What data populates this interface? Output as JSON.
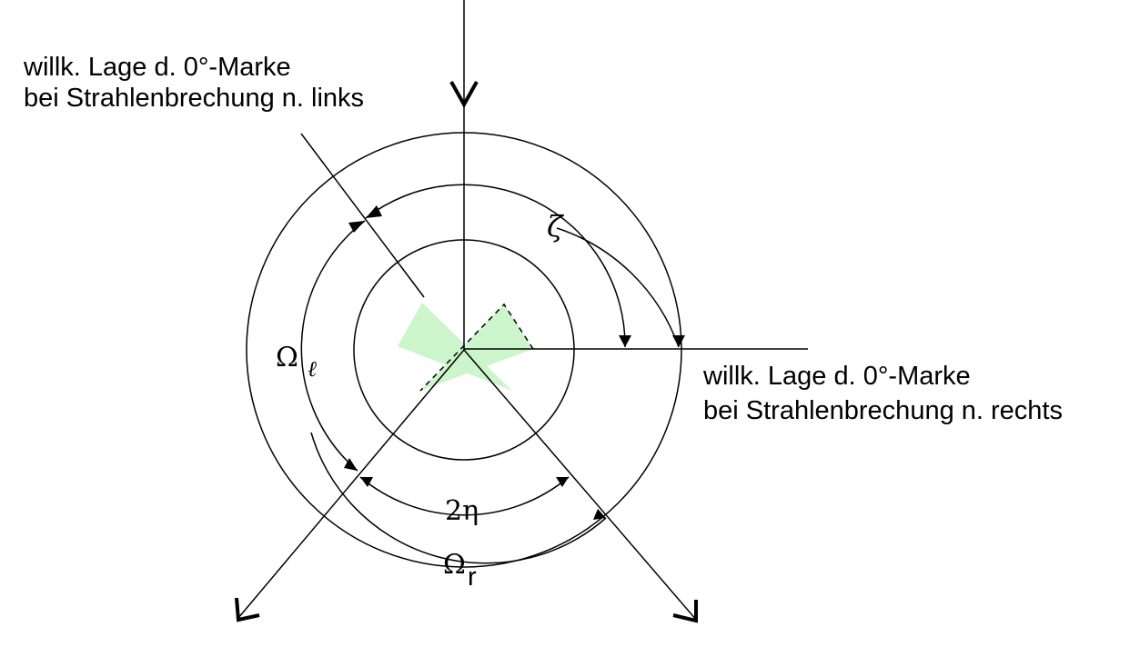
{
  "labels": {
    "left_note_line1": "willk. Lage d. 0°-Marke",
    "left_note_line2": "bei Strahlenbrechung n. links",
    "right_note_line1": "willk. Lage d. 0°-Marke",
    "right_note_line2": "bei Strahlenbrechung n. rechts"
  },
  "angles": {
    "zeta": "ζ",
    "omega_left": "Ω",
    "omega_left_sub": "ℓ",
    "two_eta_coef": "2",
    "two_eta": "η",
    "omega_right": "Ω",
    "omega_right_sub": "r"
  },
  "colors": {
    "line": "#000000",
    "prism_fill": "#ccf5cc",
    "prism_stroke_dashed": "#000000"
  }
}
